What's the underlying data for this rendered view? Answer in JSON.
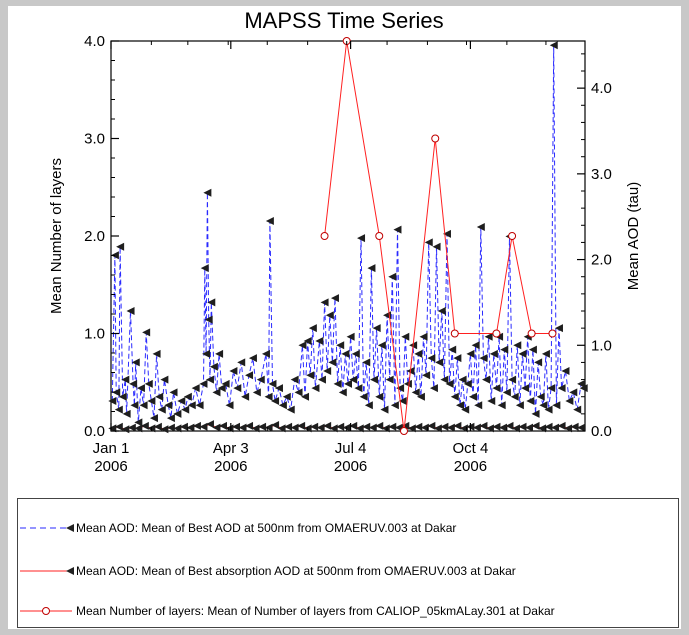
{
  "chart_data": {
    "type": "line",
    "title": "MAPSS Time Series",
    "xlabel": "",
    "ylabel_left": "Mean Number of layers",
    "ylabel_right": "Mean AOD (tau)",
    "ylim_left": [
      0,
      4.0
    ],
    "ylim_right": [
      0,
      4.55
    ],
    "yticks_left": [
      "0.0",
      "1.0",
      "2.0",
      "3.0",
      "4.0"
    ],
    "yticks_right": [
      "0.0",
      "1.0",
      "2.0",
      "3.0",
      "4.0"
    ],
    "xticks": [
      {
        "line1": "Jan 1",
        "line2": "2006",
        "date": "2006-01-01"
      },
      {
        "line1": "Apr 3",
        "line2": "2006",
        "date": "2006-04-03"
      },
      {
        "line1": "Jul 4",
        "line2": "2006",
        "date": "2006-07-04"
      },
      {
        "line1": "Oct 4",
        "line2": "2006",
        "date": "2006-10-04"
      }
    ],
    "xrange": [
      "2006-01-01",
      "2006-12-31"
    ],
    "grid": false,
    "legend_position": "bottom",
    "series": [
      {
        "name": "Mean AOD: Mean of Best AOD at 500nm from OMAERUV.003 at Dakar",
        "axis": "right",
        "color": "#2a2aff",
        "style": "dashed",
        "marker": "left-triangle",
        "points": [
          [
            "2006-01-02",
            0.35
          ],
          [
            "2006-01-04",
            2.05
          ],
          [
            "2006-01-05",
            0.45
          ],
          [
            "2006-01-07",
            0.25
          ],
          [
            "2006-01-08",
            2.15
          ],
          [
            "2006-01-10",
            0.4
          ],
          [
            "2006-01-12",
            0.6
          ],
          [
            "2006-01-13",
            0.2
          ],
          [
            "2006-01-16",
            1.4
          ],
          [
            "2006-01-18",
            0.55
          ],
          [
            "2006-01-19",
            0.3
          ],
          [
            "2006-01-20",
            0.8
          ],
          [
            "2006-01-22",
            0.1
          ],
          [
            "2006-01-24",
            0.5
          ],
          [
            "2006-01-26",
            0.3
          ],
          [
            "2006-01-28",
            1.15
          ],
          [
            "2006-01-30",
            0.55
          ],
          [
            "2006-02-01",
            0.35
          ],
          [
            "2006-02-03",
            0.15
          ],
          [
            "2006-02-05",
            0.9
          ],
          [
            "2006-02-07",
            0.4
          ],
          [
            "2006-02-09",
            0.25
          ],
          [
            "2006-02-11",
            0.6
          ],
          [
            "2006-02-14",
            0.3
          ],
          [
            "2006-02-16",
            0.15
          ],
          [
            "2006-02-18",
            0.45
          ],
          [
            "2006-02-21",
            0.2
          ],
          [
            "2006-02-24",
            0.35
          ],
          [
            "2006-02-27",
            0.25
          ],
          [
            "2006-03-01",
            0.4
          ],
          [
            "2006-03-04",
            0.3
          ],
          [
            "2006-03-07",
            0.5
          ],
          [
            "2006-03-10",
            0.3
          ],
          [
            "2006-03-13",
            0.55
          ],
          [
            "2006-03-14",
            1.9
          ],
          [
            "2006-03-15",
            0.9
          ],
          [
            "2006-03-16",
            2.78
          ],
          [
            "2006-03-17",
            1.3
          ],
          [
            "2006-03-18",
            0.6
          ],
          [
            "2006-03-19",
            1.5
          ],
          [
            "2006-03-21",
            0.75
          ],
          [
            "2006-03-23",
            0.45
          ],
          [
            "2006-03-25",
            0.9
          ],
          [
            "2006-03-27",
            0.5
          ],
          [
            "2006-03-30",
            0.55
          ],
          [
            "2006-04-02",
            0.3
          ],
          [
            "2006-04-05",
            0.7
          ],
          [
            "2006-04-08",
            0.5
          ],
          [
            "2006-04-11",
            0.8
          ],
          [
            "2006-04-14",
            0.4
          ],
          [
            "2006-04-17",
            0.65
          ],
          [
            "2006-04-20",
            0.85
          ],
          [
            "2006-04-23",
            0.45
          ],
          [
            "2006-04-26",
            0.6
          ],
          [
            "2006-04-30",
            0.9
          ],
          [
            "2006-05-02",
            0.4
          ],
          [
            "2006-05-03",
            2.45
          ],
          [
            "2006-05-05",
            0.55
          ],
          [
            "2006-05-07",
            0.35
          ],
          [
            "2006-05-10",
            0.5
          ],
          [
            "2006-05-13",
            0.3
          ],
          [
            "2006-05-16",
            0.4
          ],
          [
            "2006-05-19",
            0.25
          ],
          [
            "2006-05-22",
            0.6
          ],
          [
            "2006-05-25",
            0.45
          ],
          [
            "2006-05-28",
            1.0
          ],
          [
            "2006-05-30",
            0.4
          ],
          [
            "2006-06-01",
            1.05
          ],
          [
            "2006-06-03",
            0.65
          ],
          [
            "2006-06-05",
            1.2
          ],
          [
            "2006-06-07",
            0.5
          ],
          [
            "2006-06-10",
            1.05
          ],
          [
            "2006-06-12",
            0.6
          ],
          [
            "2006-06-14",
            1.5
          ],
          [
            "2006-06-16",
            0.7
          ],
          [
            "2006-06-18",
            1.35
          ],
          [
            "2006-06-20",
            0.8
          ],
          [
            "2006-06-22",
            1.55
          ],
          [
            "2006-06-24",
            0.55
          ],
          [
            "2006-06-26",
            1.0
          ],
          [
            "2006-06-28",
            0.45
          ],
          [
            "2006-06-30",
            0.9
          ],
          [
            "2006-07-02",
            0.55
          ],
          [
            "2006-07-04",
            1.1
          ],
          [
            "2006-07-06",
            0.6
          ],
          [
            "2006-07-08",
            0.9
          ],
          [
            "2006-07-10",
            0.5
          ],
          [
            "2006-07-12",
            2.25
          ],
          [
            "2006-07-14",
            0.4
          ],
          [
            "2006-07-16",
            0.8
          ],
          [
            "2006-07-18",
            0.3
          ],
          [
            "2006-07-20",
            1.9
          ],
          [
            "2006-07-22",
            0.6
          ],
          [
            "2006-07-24",
            1.2
          ],
          [
            "2006-07-26",
            0.4
          ],
          [
            "2006-07-28",
            1.0
          ],
          [
            "2006-07-30",
            0.25
          ],
          [
            "2006-08-01",
            1.35
          ],
          [
            "2006-08-03",
            0.6
          ],
          [
            "2006-08-05",
            1.8
          ],
          [
            "2006-08-07",
            0.3
          ],
          [
            "2006-08-09",
            2.35
          ],
          [
            "2006-08-11",
            0.5
          ],
          [
            "2006-08-13",
            0.35
          ],
          [
            "2006-08-15",
            1.1
          ],
          [
            "2006-08-17",
            0.55
          ],
          [
            "2006-08-19",
            0.7
          ],
          [
            "2006-08-21",
            1.0
          ],
          [
            "2006-08-23",
            0.45
          ],
          [
            "2006-08-25",
            0.9
          ],
          [
            "2006-08-27",
            0.4
          ],
          [
            "2006-08-29",
            1.1
          ],
          [
            "2006-08-31",
            0.65
          ],
          [
            "2006-09-02",
            2.2
          ],
          [
            "2006-09-04",
            0.85
          ],
          [
            "2006-09-06",
            0.5
          ],
          [
            "2006-09-08",
            2.15
          ],
          [
            "2006-09-10",
            0.8
          ],
          [
            "2006-09-12",
            1.4
          ],
          [
            "2006-09-14",
            0.6
          ],
          [
            "2006-09-16",
            2.3
          ],
          [
            "2006-09-18",
            0.55
          ],
          [
            "2006-09-20",
            0.95
          ],
          [
            "2006-09-22",
            0.4
          ],
          [
            "2006-09-24",
            0.85
          ],
          [
            "2006-09-26",
            0.3
          ],
          [
            "2006-09-28",
            0.6
          ],
          [
            "2006-09-30",
            0.25
          ],
          [
            "2006-10-02",
            0.55
          ],
          [
            "2006-10-04",
            0.9
          ],
          [
            "2006-10-06",
            0.4
          ],
          [
            "2006-10-08",
            1.0
          ],
          [
            "2006-10-10",
            0.3
          ],
          [
            "2006-10-12",
            2.38
          ],
          [
            "2006-10-14",
            0.85
          ],
          [
            "2006-10-16",
            0.6
          ],
          [
            "2006-10-18",
            1.1
          ],
          [
            "2006-10-20",
            0.35
          ],
          [
            "2006-10-22",
            0.9
          ],
          [
            "2006-10-24",
            0.5
          ],
          [
            "2006-10-26",
            1.1
          ],
          [
            "2006-10-28",
            0.3
          ],
          [
            "2006-10-30",
            0.95
          ],
          [
            "2006-11-01",
            0.45
          ],
          [
            "2006-11-03",
            2.27
          ],
          [
            "2006-11-05",
            0.6
          ],
          [
            "2006-11-07",
            0.4
          ],
          [
            "2006-11-09",
            1.0
          ],
          [
            "2006-11-11",
            0.3
          ],
          [
            "2006-11-13",
            0.9
          ],
          [
            "2006-11-15",
            0.5
          ],
          [
            "2006-11-17",
            1.1
          ],
          [
            "2006-11-19",
            0.35
          ],
          [
            "2006-11-21",
            0.95
          ],
          [
            "2006-11-23",
            0.2
          ],
          [
            "2006-11-25",
            0.8
          ],
          [
            "2006-11-27",
            0.4
          ],
          [
            "2006-11-29",
            0.3
          ],
          [
            "2006-12-01",
            0.9
          ],
          [
            "2006-12-03",
            0.25
          ],
          [
            "2006-12-05",
            0.5
          ],
          [
            "2006-12-07",
            4.5
          ],
          [
            "2006-12-09",
            0.3
          ],
          [
            "2006-12-11",
            1.2
          ],
          [
            "2006-12-13",
            0.5
          ],
          [
            "2006-12-16",
            0.7
          ],
          [
            "2006-12-19",
            0.35
          ],
          [
            "2006-12-22",
            0.45
          ],
          [
            "2006-12-25",
            0.25
          ],
          [
            "2006-12-28",
            0.55
          ],
          [
            "2006-12-30",
            0.5
          ]
        ]
      },
      {
        "name": "Mean AOD: Mean of Best absorption AOD at 500nm from OMAERUV.003 at Dakar",
        "axis": "right",
        "color": "#ff2020",
        "style": "solid",
        "marker": "left-triangle",
        "points": [
          [
            "2006-01-02",
            0.03
          ],
          [
            "2006-01-07",
            0.05
          ],
          [
            "2006-01-12",
            0.02
          ],
          [
            "2006-01-17",
            0.04
          ],
          [
            "2006-01-22",
            0.03
          ],
          [
            "2006-01-27",
            0.06
          ],
          [
            "2006-02-01",
            0.03
          ],
          [
            "2006-02-06",
            0.05
          ],
          [
            "2006-02-11",
            0.02
          ],
          [
            "2006-02-16",
            0.04
          ],
          [
            "2006-02-21",
            0.03
          ],
          [
            "2006-02-26",
            0.05
          ],
          [
            "2006-03-03",
            0.04
          ],
          [
            "2006-03-08",
            0.06
          ],
          [
            "2006-03-13",
            0.05
          ],
          [
            "2006-03-18",
            0.08
          ],
          [
            "2006-03-23",
            0.04
          ],
          [
            "2006-03-28",
            0.06
          ],
          [
            "2006-04-02",
            0.03
          ],
          [
            "2006-04-07",
            0.05
          ],
          [
            "2006-04-12",
            0.04
          ],
          [
            "2006-04-17",
            0.06
          ],
          [
            "2006-04-22",
            0.03
          ],
          [
            "2006-04-27",
            0.05
          ],
          [
            "2006-05-02",
            0.04
          ],
          [
            "2006-05-07",
            0.07
          ],
          [
            "2006-05-12",
            0.03
          ],
          [
            "2006-05-17",
            0.05
          ],
          [
            "2006-05-22",
            0.04
          ],
          [
            "2006-05-27",
            0.06
          ],
          [
            "2006-06-01",
            0.03
          ],
          [
            "2006-06-06",
            0.05
          ],
          [
            "2006-06-11",
            0.04
          ],
          [
            "2006-06-16",
            0.06
          ],
          [
            "2006-06-21",
            0.03
          ],
          [
            "2006-06-26",
            0.05
          ],
          [
            "2006-07-01",
            0.04
          ],
          [
            "2006-07-06",
            0.06
          ],
          [
            "2006-07-11",
            0.03
          ],
          [
            "2006-07-16",
            0.05
          ],
          [
            "2006-07-21",
            0.04
          ],
          [
            "2006-07-26",
            0.06
          ],
          [
            "2006-07-31",
            0.03
          ],
          [
            "2006-08-05",
            0.05
          ],
          [
            "2006-08-10",
            0.04
          ],
          [
            "2006-08-15",
            0.06
          ],
          [
            "2006-08-20",
            0.03
          ],
          [
            "2006-08-25",
            0.05
          ],
          [
            "2006-08-30",
            0.04
          ],
          [
            "2006-09-04",
            0.06
          ],
          [
            "2006-09-09",
            0.03
          ],
          [
            "2006-09-14",
            0.05
          ],
          [
            "2006-09-19",
            0.04
          ],
          [
            "2006-09-24",
            0.06
          ],
          [
            "2006-09-29",
            0.03
          ],
          [
            "2006-10-04",
            0.05
          ],
          [
            "2006-10-09",
            0.04
          ],
          [
            "2006-10-14",
            0.06
          ],
          [
            "2006-10-19",
            0.03
          ],
          [
            "2006-10-24",
            0.05
          ],
          [
            "2006-10-29",
            0.04
          ],
          [
            "2006-11-03",
            0.06
          ],
          [
            "2006-11-08",
            0.03
          ],
          [
            "2006-11-13",
            0.05
          ],
          [
            "2006-11-18",
            0.04
          ],
          [
            "2006-11-23",
            0.06
          ],
          [
            "2006-11-28",
            0.03
          ],
          [
            "2006-12-03",
            0.05
          ],
          [
            "2006-12-08",
            0.04
          ],
          [
            "2006-12-13",
            0.06
          ],
          [
            "2006-12-18",
            0.03
          ],
          [
            "2006-12-23",
            0.05
          ],
          [
            "2006-12-28",
            0.04
          ]
        ]
      },
      {
        "name": "Mean Number of layers: Mean of Number of layers from CALIOP_05kmALay.301 at Dakar",
        "axis": "left",
        "color": "#ff2020",
        "style": "solid",
        "marker": "open-circle",
        "points": [
          [
            "2006-06-14",
            2.0
          ],
          [
            "2006-07-01",
            4.0
          ],
          [
            "2006-07-26",
            2.0
          ],
          [
            "2006-08-14",
            0.0
          ],
          [
            "2006-09-07",
            3.0
          ],
          [
            "2006-09-22",
            1.0
          ],
          [
            "2006-10-24",
            1.0
          ],
          [
            "2006-11-05",
            2.0
          ],
          [
            "2006-11-20",
            1.0
          ],
          [
            "2006-12-06",
            1.0
          ]
        ]
      }
    ]
  }
}
